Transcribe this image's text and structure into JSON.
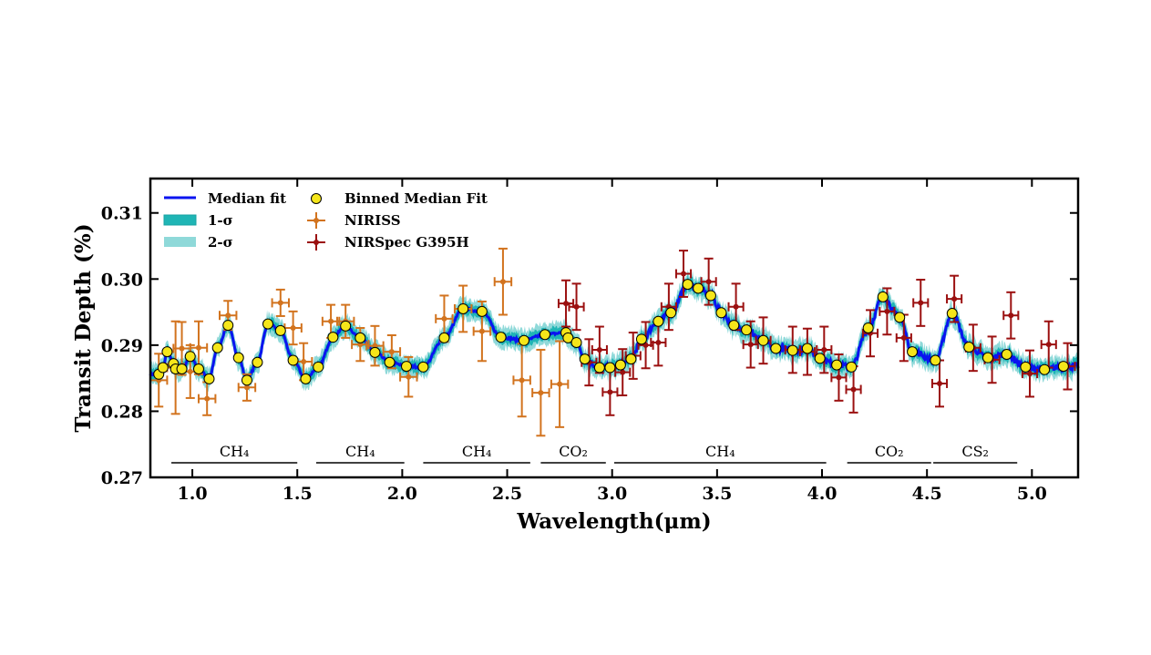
{
  "chart_data": {
    "type": "scatter",
    "title": "",
    "xlabel": "Wavelength(μm)",
    "ylabel": "Transit Depth (%)",
    "xlim": [
      0.8,
      5.22
    ],
    "ylim": [
      0.27,
      0.3152
    ],
    "xticks": [
      "1.0",
      "1.5",
      "2.0",
      "2.5",
      "3.0",
      "3.5",
      "4.0",
      "4.5",
      "5.0"
    ],
    "yticks": [
      "0.27",
      "0.28",
      "0.29",
      "0.30",
      "0.31"
    ],
    "grid": false,
    "legend_position": "top-left",
    "legend": {
      "median": "Median fit",
      "sigma1": "1-σ",
      "sigma2": "2-σ",
      "binned": "Binned Median Fit",
      "niriss": "NIRISS",
      "nirspec": "NIRSpec G395H"
    },
    "colors": {
      "median": "#0a14f0",
      "sigma1": "#1fb5b5",
      "sigma2": "#8fd9d9",
      "binned_fill": "#f5e61a",
      "niriss": "#d2731e",
      "nirspec": "#9b1010"
    },
    "sigma_halfwidth": {
      "sigma1": 0.0009,
      "sigma2": 0.0016
    },
    "binned_median_fit": {
      "x": [
        0.84,
        0.86,
        0.88,
        0.91,
        0.92,
        0.95,
        0.99,
        1.03,
        1.08,
        1.12,
        1.17,
        1.22,
        1.26,
        1.31,
        1.36,
        1.42,
        1.48,
        1.54,
        1.6,
        1.67,
        1.73,
        1.8,
        1.87,
        1.94,
        2.02,
        2.1,
        2.2,
        2.29,
        2.38,
        2.47,
        2.58,
        2.68,
        2.78,
        2.79,
        2.83,
        2.87,
        2.94,
        2.99,
        3.04,
        3.09,
        3.14,
        3.22,
        3.28,
        3.36,
        3.41,
        3.47,
        3.52,
        3.58,
        3.64,
        3.72,
        3.78,
        3.86,
        3.93,
        3.99,
        4.07,
        4.14,
        4.22,
        4.29,
        4.37,
        4.43,
        4.54,
        4.62,
        4.7,
        4.79,
        4.88,
        4.97,
        5.06,
        5.15
      ],
      "y": [
        0.2856,
        0.2866,
        0.289,
        0.2872,
        0.2864,
        0.2864,
        0.2883,
        0.2864,
        0.2849,
        0.2896,
        0.293,
        0.2881,
        0.2847,
        0.2874,
        0.2932,
        0.2922,
        0.2877,
        0.2849,
        0.2867,
        0.2912,
        0.2929,
        0.2911,
        0.2889,
        0.2874,
        0.2868,
        0.2867,
        0.2911,
        0.2955,
        0.2951,
        0.2912,
        0.2907,
        0.2916,
        0.2919,
        0.2911,
        0.2904,
        0.2879,
        0.2866,
        0.2866,
        0.287,
        0.2879,
        0.2909,
        0.2936,
        0.2949,
        0.2992,
        0.2986,
        0.2975,
        0.2949,
        0.293,
        0.2923,
        0.2907,
        0.2895,
        0.2892,
        0.2895,
        0.288,
        0.287,
        0.2867,
        0.2926,
        0.2973,
        0.2942,
        0.289,
        0.2877,
        0.2948,
        0.2897,
        0.2881,
        0.2886,
        0.2867,
        0.2863,
        0.2868
      ]
    },
    "niriss": {
      "x": [
        0.84,
        0.92,
        0.95,
        0.99,
        1.03,
        1.07,
        1.17,
        1.26,
        1.42,
        1.48,
        1.53,
        1.66,
        1.73,
        1.8,
        1.87,
        1.95,
        2.03,
        2.2,
        2.29,
        2.38,
        2.48,
        2.57,
        2.66,
        2.75
      ],
      "y": [
        0.2847,
        0.2866,
        0.2895,
        0.286,
        0.2896,
        0.2819,
        0.2945,
        0.2836,
        0.2964,
        0.2926,
        0.2875,
        0.2936,
        0.2936,
        0.2901,
        0.2899,
        0.289,
        0.2852,
        0.294,
        0.2955,
        0.2921,
        0.2996,
        0.2847,
        0.2828,
        0.2841
      ],
      "yerr": [
        0.004,
        0.007,
        0.004,
        0.004,
        0.004,
        0.0025,
        0.0022,
        0.002,
        0.002,
        0.0025,
        0.0028,
        0.0025,
        0.0025,
        0.0025,
        0.003,
        0.0025,
        0.003,
        0.0035,
        0.0035,
        0.0045,
        0.005,
        0.0055,
        0.0065,
        0.0065
      ],
      "xerr": 0.04
    },
    "nirspec_g395h": {
      "x": [
        2.78,
        2.83,
        2.89,
        2.94,
        2.99,
        3.05,
        3.1,
        3.16,
        3.22,
        3.27,
        3.34,
        3.46,
        3.59,
        3.66,
        3.72,
        3.86,
        3.93,
        4.01,
        4.08,
        4.15,
        4.23,
        4.31,
        4.39,
        4.47,
        4.56,
        4.63,
        4.72,
        4.81,
        4.9,
        4.99,
        5.08,
        5.17
      ],
      "y": [
        0.2963,
        0.2958,
        0.2874,
        0.2893,
        0.2829,
        0.2859,
        0.2884,
        0.29,
        0.2904,
        0.2958,
        0.3008,
        0.2996,
        0.2958,
        0.2901,
        0.2907,
        0.2893,
        0.289,
        0.2893,
        0.2851,
        0.2833,
        0.2918,
        0.2951,
        0.2911,
        0.2964,
        0.2842,
        0.297,
        0.2896,
        0.2878,
        0.2945,
        0.2857,
        0.2901,
        0.2868
      ],
      "yerr": 0.0035,
      "xerr": 0.035
    },
    "annotations": [
      {
        "label": "CH₄",
        "x0": 0.9,
        "x1": 1.5
      },
      {
        "label": "CH₄",
        "x0": 1.59,
        "x1": 2.01
      },
      {
        "label": "CH₄",
        "x0": 2.1,
        "x1": 2.61
      },
      {
        "label": "CO₂",
        "x0": 2.66,
        "x1": 2.97
      },
      {
        "label": "CH₄",
        "x0": 3.01,
        "x1": 4.02
      },
      {
        "label": "CO₂",
        "x0": 4.12,
        "x1": 4.52
      },
      {
        "label": "CS₂",
        "x0": 4.53,
        "x1": 4.93
      }
    ]
  }
}
